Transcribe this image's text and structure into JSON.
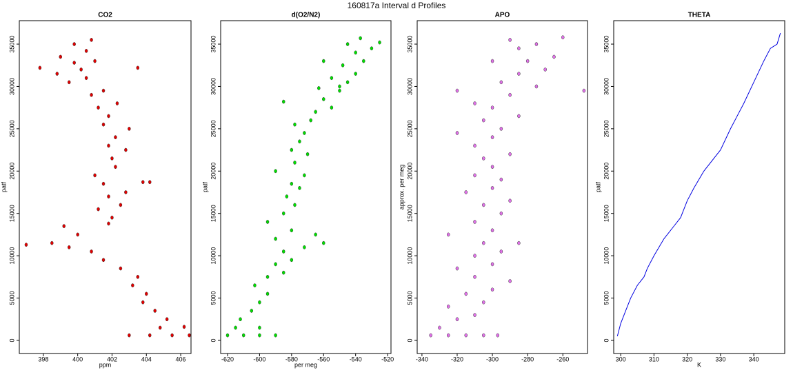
{
  "title": "160817a   Interval d Profiles",
  "chart_data": [
    {
      "type": "scatter",
      "title": "CO2",
      "xlabel": "ppm",
      "ylabel": "patf",
      "color": "#e00000",
      "xlim": [
        396.6,
        406.6
      ],
      "xticks": [
        398,
        400,
        402,
        404,
        406
      ],
      "ylim": [
        -1550,
        37770
      ],
      "yticks": [
        0,
        5000,
        10000,
        15000,
        20000,
        25000,
        30000,
        35000
      ],
      "x": [
        405.5,
        404.2,
        403,
        406.5,
        404.8,
        405.2,
        404.5,
        403.8,
        404,
        403.2,
        403.5,
        402.5,
        401.5,
        400.8,
        399.5,
        398.5,
        400,
        399.2,
        401.8,
        402,
        401.2,
        402.5,
        401.8,
        402.8,
        401.5,
        403.8,
        401,
        402.2,
        402,
        402.8,
        401.8,
        402.2,
        403,
        401.5,
        401.8,
        401.2,
        402.3,
        400.8,
        401.5,
        399.5,
        400.5,
        398.8,
        400.2,
        399.8,
        401,
        399,
        400.5,
        399.8,
        400.8,
        397.8,
        397,
        406.2,
        404.2,
        403.5
      ],
      "y": [
        600,
        600,
        600,
        600,
        1500,
        2500,
        3500,
        4500,
        5500,
        6500,
        7500,
        8500,
        9500,
        10500,
        11000,
        11500,
        12500,
        13500,
        13800,
        14500,
        15500,
        16000,
        17000,
        17500,
        18500,
        18700,
        19500,
        20500,
        21500,
        22500,
        23000,
        24000,
        25000,
        25500,
        26500,
        27500,
        28000,
        29000,
        29500,
        30500,
        31000,
        31500,
        32000,
        32800,
        33000,
        33500,
        34200,
        35000,
        35500,
        32200,
        11300,
        1600,
        18700,
        32200
      ]
    },
    {
      "type": "scatter",
      "title": "d(O2/N2)",
      "xlabel": "per meg",
      "ylabel": "patf",
      "color": "#00e000",
      "xlim": [
        -624.3,
        -517.9
      ],
      "xticks": [
        -620,
        -600,
        -580,
        -560,
        -540,
        -520
      ],
      "ylim": [
        -1550,
        37770
      ],
      "yticks": [
        0,
        5000,
        10000,
        15000,
        20000,
        25000,
        30000,
        35000
      ],
      "x": [
        -620,
        -610,
        -600,
        -590,
        -615,
        -612,
        -605,
        -600,
        -595,
        -603,
        -595,
        -585,
        -590,
        -580,
        -585,
        -572,
        -560,
        -565,
        -590,
        -580,
        -595,
        -585,
        -578,
        -583,
        -575,
        -580,
        -572,
        -590,
        -578,
        -570,
        -580,
        -575,
        -572,
        -578,
        -568,
        -565,
        -555,
        -560,
        -550,
        -563,
        -545,
        -555,
        -540,
        -548,
        -535,
        -560,
        -540,
        -530,
        -545,
        -537,
        -525,
        -585,
        -600,
        -550
      ],
      "y": [
        600,
        600,
        600,
        600,
        1500,
        2500,
        3500,
        4500,
        5500,
        6500,
        7500,
        8000,
        9000,
        9500,
        10500,
        11000,
        11500,
        12500,
        12000,
        13000,
        14000,
        15000,
        16000,
        17000,
        18000,
        18500,
        19500,
        20000,
        21000,
        22000,
        22500,
        23500,
        24500,
        25500,
        26000,
        27000,
        27500,
        28500,
        29500,
        29800,
        30500,
        31000,
        31500,
        32500,
        33000,
        33000,
        34000,
        34500,
        35000,
        35700,
        35200,
        28200,
        1500,
        30000
      ]
    },
    {
      "type": "scatter",
      "title": "APO",
      "ylabel": "approx. per meg",
      "color": "#e070e8",
      "xlim": [
        -342.7,
        -246
      ],
      "xticks": [
        -340,
        -320,
        -300,
        -280,
        -260
      ],
      "ylim": [
        -1550,
        37770
      ],
      "yticks": [
        0,
        5000,
        10000,
        15000,
        20000,
        25000,
        30000,
        35000
      ],
      "x": [
        -335,
        -325,
        -315,
        -305,
        -297,
        -330,
        -320,
        -310,
        -325,
        -305,
        -315,
        -300,
        -290,
        -310,
        -320,
        -300,
        -310,
        -295,
        -305,
        -285,
        -325,
        -300,
        -310,
        -295,
        -305,
        -290,
        -315,
        -300,
        -295,
        -310,
        -300,
        -305,
        -290,
        -310,
        -300,
        -320,
        -295,
        -305,
        -285,
        -300,
        -310,
        -290,
        -320,
        -275,
        -295,
        -285,
        -270,
        -280,
        -300,
        -265,
        -285,
        -275,
        -290,
        -260,
        -248
      ],
      "y": [
        600,
        600,
        600,
        600,
        600,
        1500,
        2500,
        3000,
        4000,
        4500,
        5500,
        6000,
        7000,
        7500,
        8500,
        9000,
        10000,
        10500,
        11500,
        11500,
        12500,
        13000,
        14000,
        15000,
        16000,
        16500,
        17500,
        18000,
        19000,
        19500,
        20500,
        21500,
        22000,
        23000,
        24000,
        24500,
        25000,
        26000,
        26500,
        27500,
        28000,
        29000,
        29500,
        30000,
        30500,
        31500,
        32000,
        33000,
        33000,
        33500,
        34500,
        35000,
        35500,
        35800,
        29500
      ]
    },
    {
      "type": "line",
      "title": "THETA",
      "xlabel": "K",
      "ylabel": "patf",
      "color": "#0000e0",
      "xlim": [
        297.9,
        349.3
      ],
      "xticks": [
        300,
        310,
        320,
        330,
        340
      ],
      "ylim": [
        -1550,
        37770
      ],
      "yticks": [
        0,
        5000,
        10000,
        15000,
        20000,
        25000,
        30000,
        35000
      ],
      "x": [
        299,
        300,
        301.5,
        303,
        305,
        307,
        308,
        310,
        313,
        316,
        318,
        319,
        320,
        322,
        325,
        330,
        333,
        335,
        337,
        340,
        343,
        345,
        347,
        348
      ],
      "y": [
        500,
        2000,
        3500,
        5000,
        6500,
        7500,
        8500,
        10000,
        12000,
        13500,
        14500,
        15500,
        16500,
        18000,
        20000,
        22500,
        25000,
        26500,
        28000,
        30500,
        33000,
        34500,
        35000,
        36300
      ]
    }
  ]
}
